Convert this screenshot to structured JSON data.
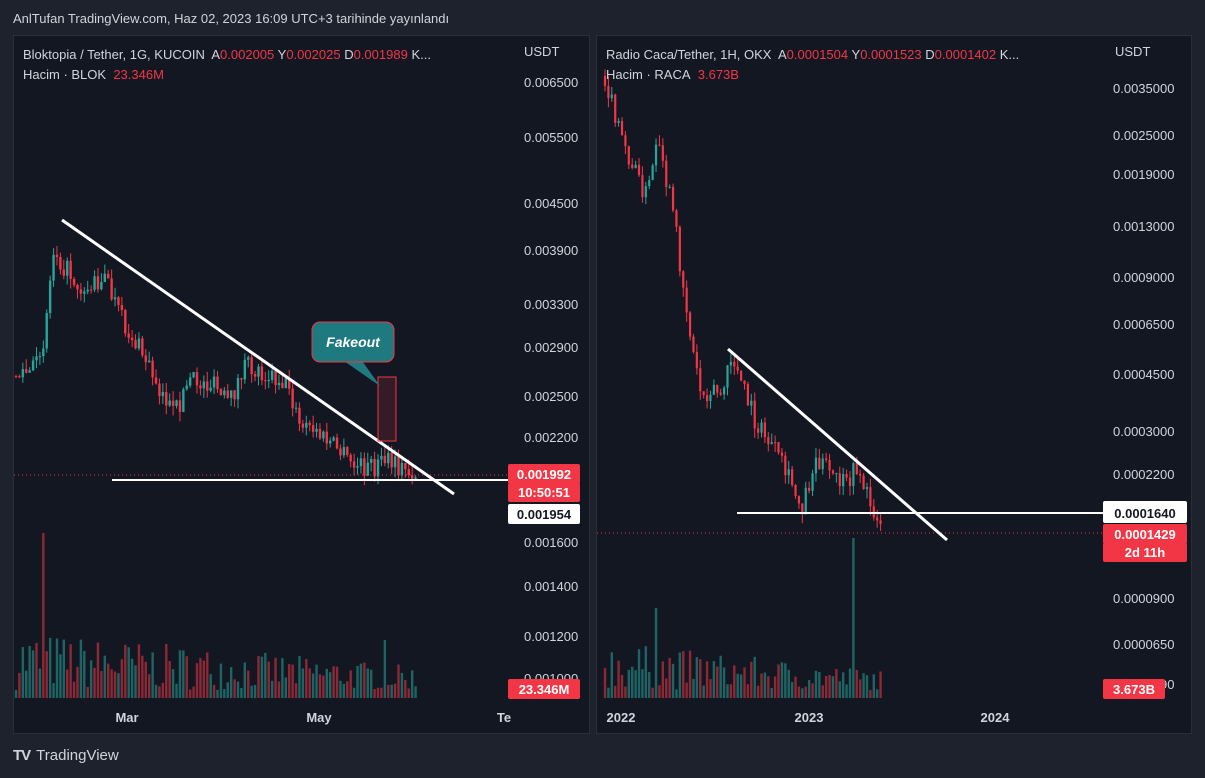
{
  "header": {
    "published": "AnlTufan TradingView.com, Haz 02, 2023 16:09 UTC+3 tarihinde yayınlandı"
  },
  "footer": {
    "brand": "TradingView",
    "logo": "TV"
  },
  "colors": {
    "up": "#26a69a",
    "down": "#f23645",
    "bg": "#131722",
    "text": "#d1d4dc",
    "white_line": "#ffffff",
    "fakeout_box": "#1f7a80"
  },
  "chart_data": [
    {
      "type": "candlestick",
      "pair": "Bloktopia / Tether, 1G, KUCOIN",
      "ohlc": {
        "A_label": "A",
        "A": "0.002005",
        "Y_label": "Y",
        "Y": "0.002025",
        "D_label": "D",
        "D": "0.001989",
        "more": "K..."
      },
      "volume_label": "Hacim · BLOK",
      "volume_value": "23.346M",
      "y_unit": "USDT",
      "y_ticks": [
        "0.006500",
        "0.005500",
        "0.004500",
        "0.003900",
        "0.003300",
        "0.002900",
        "0.002500",
        "0.002200",
        "0.001600",
        "0.001400",
        "0.001200",
        "0.001000"
      ],
      "x_ticks": [
        "Mar",
        "May",
        "Te"
      ],
      "price_tags": {
        "current": "0.001992",
        "countdown": "10:50:51",
        "support": "0.001954",
        "volume": "23.346M"
      },
      "annotation": "Fakeout",
      "scale": "log",
      "drawings": [
        "descending trendline",
        "horizontal support line",
        "fakeout rectangle"
      ]
    },
    {
      "type": "candlestick",
      "pair": "Radio Caca/Tether, 1H, OKX",
      "ohlc": {
        "A_label": "A",
        "A": "0.0001504",
        "Y_label": "Y",
        "Y": "0.0001523",
        "D_label": "D",
        "D": "0.0001402",
        "more": "K..."
      },
      "volume_label": "Hacim · RACA",
      "volume_value": "3.673B",
      "y_unit": "USDT",
      "y_ticks": [
        "0.0035000",
        "0.0025000",
        "0.0019000",
        "0.0013000",
        "0.0009000",
        "0.0006500",
        "0.0004500",
        "0.0003000",
        "0.0002200",
        "0.0000900",
        "0.0000650",
        "0.0000490"
      ],
      "x_ticks": [
        "2022",
        "2023",
        "2024"
      ],
      "price_tags": {
        "support": "0.0001640",
        "current": "0.0001429",
        "countdown": "2d 11h",
        "volume": "3.673B"
      },
      "scale": "log",
      "drawings": [
        "descending trendline",
        "horizontal support line"
      ]
    }
  ]
}
